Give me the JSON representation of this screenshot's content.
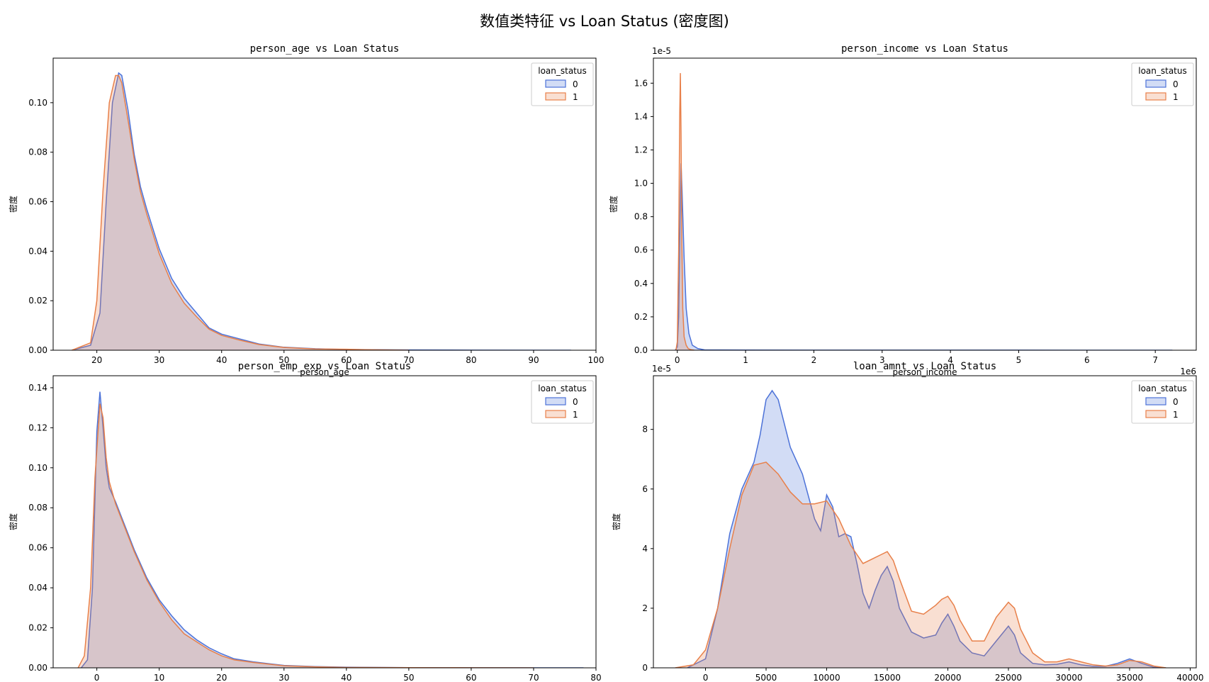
{
  "figure_title": "数值类特征 vs Loan Status (密度图)",
  "colors": {
    "class0": "#4c72d8",
    "class1": "#e8804a"
  },
  "chart_data": [
    {
      "type": "area",
      "title": "person_age vs Loan Status",
      "xlabel": "person_age",
      "ylabel": "密度",
      "xlim": [
        13,
        100
      ],
      "ylim": [
        0,
        0.118
      ],
      "xticks": [
        20,
        30,
        40,
        50,
        60,
        70,
        80,
        90,
        100
      ],
      "yticks": [
        0.0,
        0.02,
        0.04,
        0.06,
        0.08,
        0.1
      ],
      "ytick_labels": [
        "0.00",
        "0.02",
        "0.04",
        "0.06",
        "0.08",
        "0.10"
      ],
      "offset_text": "",
      "legend": {
        "title": "loan_status",
        "labels": [
          "0",
          "1"
        ],
        "position": "top-right"
      },
      "series": [
        {
          "name": "0",
          "x": [
            16,
            19,
            20.5,
            21.5,
            22.5,
            23.5,
            24,
            25,
            26,
            27,
            28,
            30,
            32,
            34,
            36,
            38,
            40,
            43,
            46,
            50,
            55,
            60,
            70,
            80,
            96
          ],
          "y": [
            0,
            0.002,
            0.015,
            0.06,
            0.1,
            0.112,
            0.111,
            0.097,
            0.079,
            0.066,
            0.057,
            0.041,
            0.029,
            0.021,
            0.015,
            0.009,
            0.0065,
            0.0045,
            0.0025,
            0.0012,
            0.0006,
            0.0003,
            0.0001,
            5e-05,
            0
          ]
        },
        {
          "name": "1",
          "x": [
            16,
            19,
            20,
            21,
            22,
            23,
            23.5,
            24,
            25,
            26,
            27,
            28,
            30,
            32,
            34,
            36,
            38,
            40,
            43,
            46,
            50,
            55,
            60,
            63,
            70
          ],
          "y": [
            0,
            0.003,
            0.02,
            0.065,
            0.1,
            0.111,
            0.111,
            0.108,
            0.093,
            0.077,
            0.064,
            0.055,
            0.039,
            0.027,
            0.019,
            0.0135,
            0.0085,
            0.006,
            0.004,
            0.0023,
            0.0011,
            0.0005,
            0.0004,
            0.0002,
            0
          ]
        }
      ]
    },
    {
      "type": "area",
      "title": "person_income vs Loan Status",
      "xlabel": "person_income",
      "ylabel": "密度",
      "xlim": [
        -350000,
        7600000
      ],
      "ylim": [
        0,
        1.75
      ],
      "xticks": [
        0,
        1000000,
        2000000,
        3000000,
        4000000,
        5000000,
        6000000,
        7000000
      ],
      "xtick_labels": [
        "0",
        "1",
        "2",
        "3",
        "4",
        "5",
        "6",
        "7"
      ],
      "x_offset_text": "1e6",
      "yticks": [
        0.0,
        0.2,
        0.4,
        0.6,
        0.8,
        1.0,
        1.2,
        1.4,
        1.6
      ],
      "ytick_labels": [
        "0.0",
        "0.2",
        "0.4",
        "0.6",
        "0.8",
        "1.0",
        "1.2",
        "1.4",
        "1.6"
      ],
      "offset_text": "1e-5",
      "legend": {
        "title": "loan_status",
        "labels": [
          "0",
          "1"
        ],
        "position": "top-right"
      },
      "series": [
        {
          "name": "0",
          "x": [
            -30000,
            0,
            20000,
            40000,
            55000,
            70000,
            85000,
            100000,
            130000,
            170000,
            220000,
            300000,
            400000,
            1000000,
            3000000,
            5000000,
            7250000
          ],
          "y": [
            0,
            0.02,
            0.2,
            0.8,
            1.12,
            0.95,
            0.75,
            0.55,
            0.25,
            0.1,
            0.03,
            0.01,
            0.002,
            0.0008,
            0.0005,
            0.0003,
            0
          ]
        },
        {
          "name": "1",
          "x": [
            -20000,
            0,
            20000,
            35000,
            45000,
            55000,
            65000,
            80000,
            100000,
            130000,
            160000,
            200000,
            250000
          ],
          "y": [
            0,
            0.05,
            0.6,
            1.4,
            1.66,
            1.3,
            0.7,
            0.25,
            0.08,
            0.03,
            0.01,
            0.003,
            0
          ]
        }
      ]
    },
    {
      "type": "area",
      "title": "person_emp_exp vs Loan Status",
      "xlabel": "",
      "ylabel": "密度",
      "xlim": [
        -7,
        80
      ],
      "ylim": [
        0,
        0.146
      ],
      "xticks": [
        0,
        10,
        20,
        30,
        40,
        50,
        60,
        70,
        80
      ],
      "yticks": [
        0.0,
        0.02,
        0.04,
        0.06,
        0.08,
        0.1,
        0.12,
        0.14
      ],
      "ytick_labels": [
        "0.00",
        "0.02",
        "0.04",
        "0.06",
        "0.08",
        "0.10",
        "0.12",
        "0.14"
      ],
      "offset_text": "",
      "legend": {
        "title": "loan_status",
        "labels": [
          "0",
          "1"
        ],
        "position": "top-right"
      },
      "series": [
        {
          "name": "0",
          "x": [
            -2.5,
            -1.5,
            -0.7,
            0,
            0.5,
            1,
            1.5,
            2,
            3,
            4,
            5,
            6,
            8,
            10,
            12,
            14,
            16,
            18,
            20,
            22,
            25,
            30,
            35,
            40,
            50,
            60,
            78
          ],
          "y": [
            0,
            0.004,
            0.04,
            0.118,
            0.138,
            0.12,
            0.1,
            0.09,
            0.083,
            0.075,
            0.067,
            0.059,
            0.045,
            0.034,
            0.026,
            0.019,
            0.014,
            0.01,
            0.007,
            0.0045,
            0.003,
            0.0012,
            0.0006,
            0.0003,
            0.0001,
            5e-05,
            0
          ]
        },
        {
          "name": "1",
          "x": [
            -3,
            -2,
            -1,
            -0.3,
            0.5,
            1,
            1.5,
            2,
            3,
            4,
            5,
            6,
            8,
            10,
            12,
            14,
            16,
            18,
            20,
            22,
            25,
            30,
            35,
            40,
            50,
            60,
            70
          ],
          "y": [
            0,
            0.006,
            0.04,
            0.095,
            0.132,
            0.125,
            0.105,
            0.093,
            0.082,
            0.074,
            0.066,
            0.058,
            0.044,
            0.033,
            0.024,
            0.017,
            0.013,
            0.009,
            0.006,
            0.004,
            0.0027,
            0.001,
            0.0005,
            0.0002,
            0.0001,
            5e-05,
            0
          ]
        }
      ]
    },
    {
      "type": "area",
      "title": "loan_amnt vs Loan Status",
      "xlabel": "",
      "ylabel": "密度",
      "xlim": [
        -4300,
        40500
      ],
      "ylim": [
        0,
        9.8
      ],
      "xticks": [
        0,
        5000,
        10000,
        15000,
        20000,
        25000,
        30000,
        35000,
        40000
      ],
      "yticks": [
        0,
        2,
        4,
        6,
        8
      ],
      "ytick_labels": [
        "0",
        "2",
        "4",
        "6",
        "8"
      ],
      "offset_text": "1e-5",
      "legend": {
        "title": "loan_status",
        "labels": [
          "0",
          "1"
        ],
        "position": "top-right"
      },
      "series": [
        {
          "name": "0",
          "x": [
            -1500,
            0,
            1000,
            2000,
            3000,
            4000,
            4500,
            5000,
            5500,
            6000,
            7000,
            8000,
            9000,
            9500,
            10000,
            10500,
            11000,
            11500,
            12000,
            12500,
            13000,
            13500,
            14000,
            14500,
            15000,
            15500,
            16000,
            17000,
            18000,
            19000,
            19500,
            20000,
            20500,
            21000,
            22000,
            23000,
            24000,
            25000,
            25500,
            26000,
            27000,
            28000,
            29000,
            30000,
            31000,
            32000,
            33000,
            34000,
            35000,
            36000,
            37000,
            38000
          ],
          "y": [
            0,
            0.3,
            2.0,
            4.5,
            6.0,
            6.9,
            7.8,
            9.0,
            9.3,
            9.0,
            7.4,
            6.5,
            5.0,
            4.6,
            5.8,
            5.4,
            4.4,
            4.5,
            4.4,
            3.5,
            2.5,
            2.0,
            2.6,
            3.1,
            3.4,
            2.9,
            2.0,
            1.2,
            1.0,
            1.1,
            1.5,
            1.8,
            1.4,
            0.9,
            0.5,
            0.4,
            0.9,
            1.4,
            1.1,
            0.5,
            0.15,
            0.1,
            0.12,
            0.2,
            0.1,
            0.05,
            0.05,
            0.15,
            0.3,
            0.15,
            0.02,
            0
          ]
        },
        {
          "name": "1",
          "x": [
            -2500,
            -1000,
            0,
            1000,
            2000,
            3000,
            4000,
            5000,
            6000,
            7000,
            8000,
            9000,
            10000,
            11000,
            12000,
            13000,
            14000,
            14500,
            15000,
            15500,
            16000,
            17000,
            18000,
            19000,
            19500,
            20000,
            20500,
            21000,
            22000,
            23000,
            24000,
            25000,
            25500,
            26000,
            27000,
            28000,
            29000,
            30000,
            31000,
            32000,
            33000,
            34000,
            35000,
            36000,
            37000,
            38000
          ],
          "y": [
            0,
            0.1,
            0.6,
            2.0,
            4.0,
            5.8,
            6.8,
            6.9,
            6.5,
            5.9,
            5.5,
            5.5,
            5.6,
            5.0,
            4.1,
            3.5,
            3.7,
            3.8,
            3.9,
            3.6,
            3.0,
            1.9,
            1.8,
            2.1,
            2.3,
            2.4,
            2.1,
            1.6,
            0.9,
            0.9,
            1.7,
            2.2,
            2.0,
            1.3,
            0.5,
            0.2,
            0.2,
            0.3,
            0.2,
            0.1,
            0.06,
            0.1,
            0.25,
            0.2,
            0.06,
            0
          ]
        }
      ]
    }
  ]
}
